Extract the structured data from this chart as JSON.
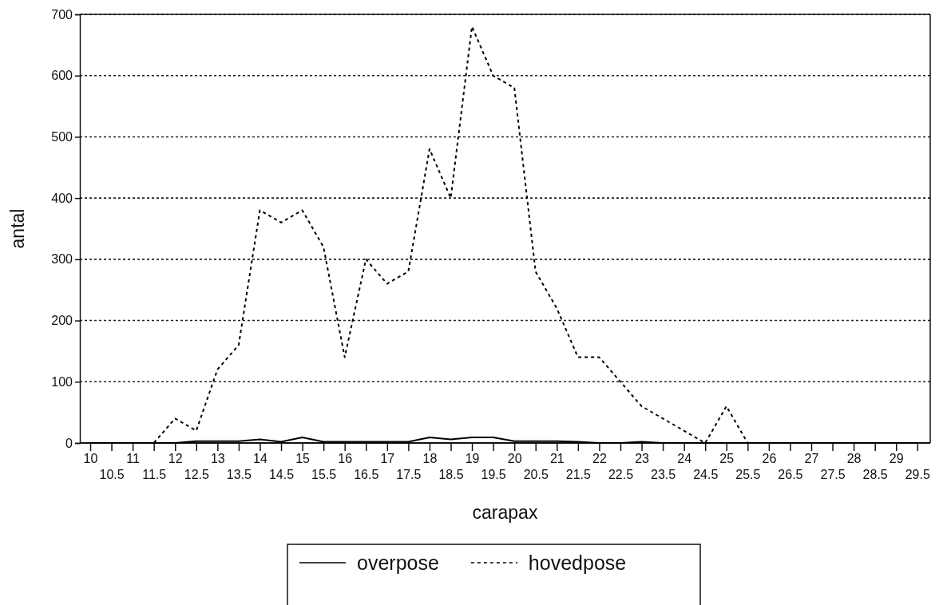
{
  "chart_data": {
    "type": "line",
    "xlabel": "carapax",
    "ylabel": "antal",
    "categories": [
      "10",
      "10.5",
      "11",
      "11.5",
      "12",
      "12.5",
      "13",
      "13.5",
      "14",
      "14.5",
      "15",
      "15.5",
      "16",
      "16.5",
      "17",
      "17.5",
      "18",
      "18.5",
      "19",
      "19.5",
      "20",
      "20.5",
      "21",
      "21.5",
      "22",
      "22.5",
      "23",
      "23.5",
      "24",
      "24.5",
      "25",
      "25.5",
      "26",
      "26.5",
      "27",
      "27.5",
      "28",
      "28.5",
      "29",
      "29.5"
    ],
    "series": [
      {
        "name": "overpose",
        "color": "#000000",
        "line_style": "solid",
        "values": [
          0,
          0,
          0,
          0,
          0,
          3,
          3,
          3,
          6,
          2,
          9,
          2,
          2,
          2,
          2,
          2,
          9,
          6,
          9,
          9,
          3,
          3,
          3,
          2,
          0,
          0,
          2,
          0,
          0,
          0,
          0,
          0,
          0,
          0,
          0,
          0,
          0,
          0,
          0,
          0
        ]
      },
      {
        "name": "hovedpose",
        "color": "#000000",
        "line_style": "dashed",
        "values": [
          0,
          0,
          0,
          0,
          40,
          20,
          120,
          160,
          380,
          360,
          380,
          320,
          140,
          300,
          260,
          280,
          480,
          400,
          680,
          600,
          580,
          280,
          220,
          140,
          140,
          100,
          60,
          40,
          20,
          0,
          60,
          0,
          0,
          0,
          0,
          0,
          0,
          0,
          0,
          0
        ]
      }
    ],
    "ylim": [
      0,
      700
    ],
    "yticks": [
      0,
      100,
      200,
      300,
      400,
      500,
      600,
      700
    ],
    "grid": "y",
    "legend": "bottom",
    "marker": "none"
  }
}
